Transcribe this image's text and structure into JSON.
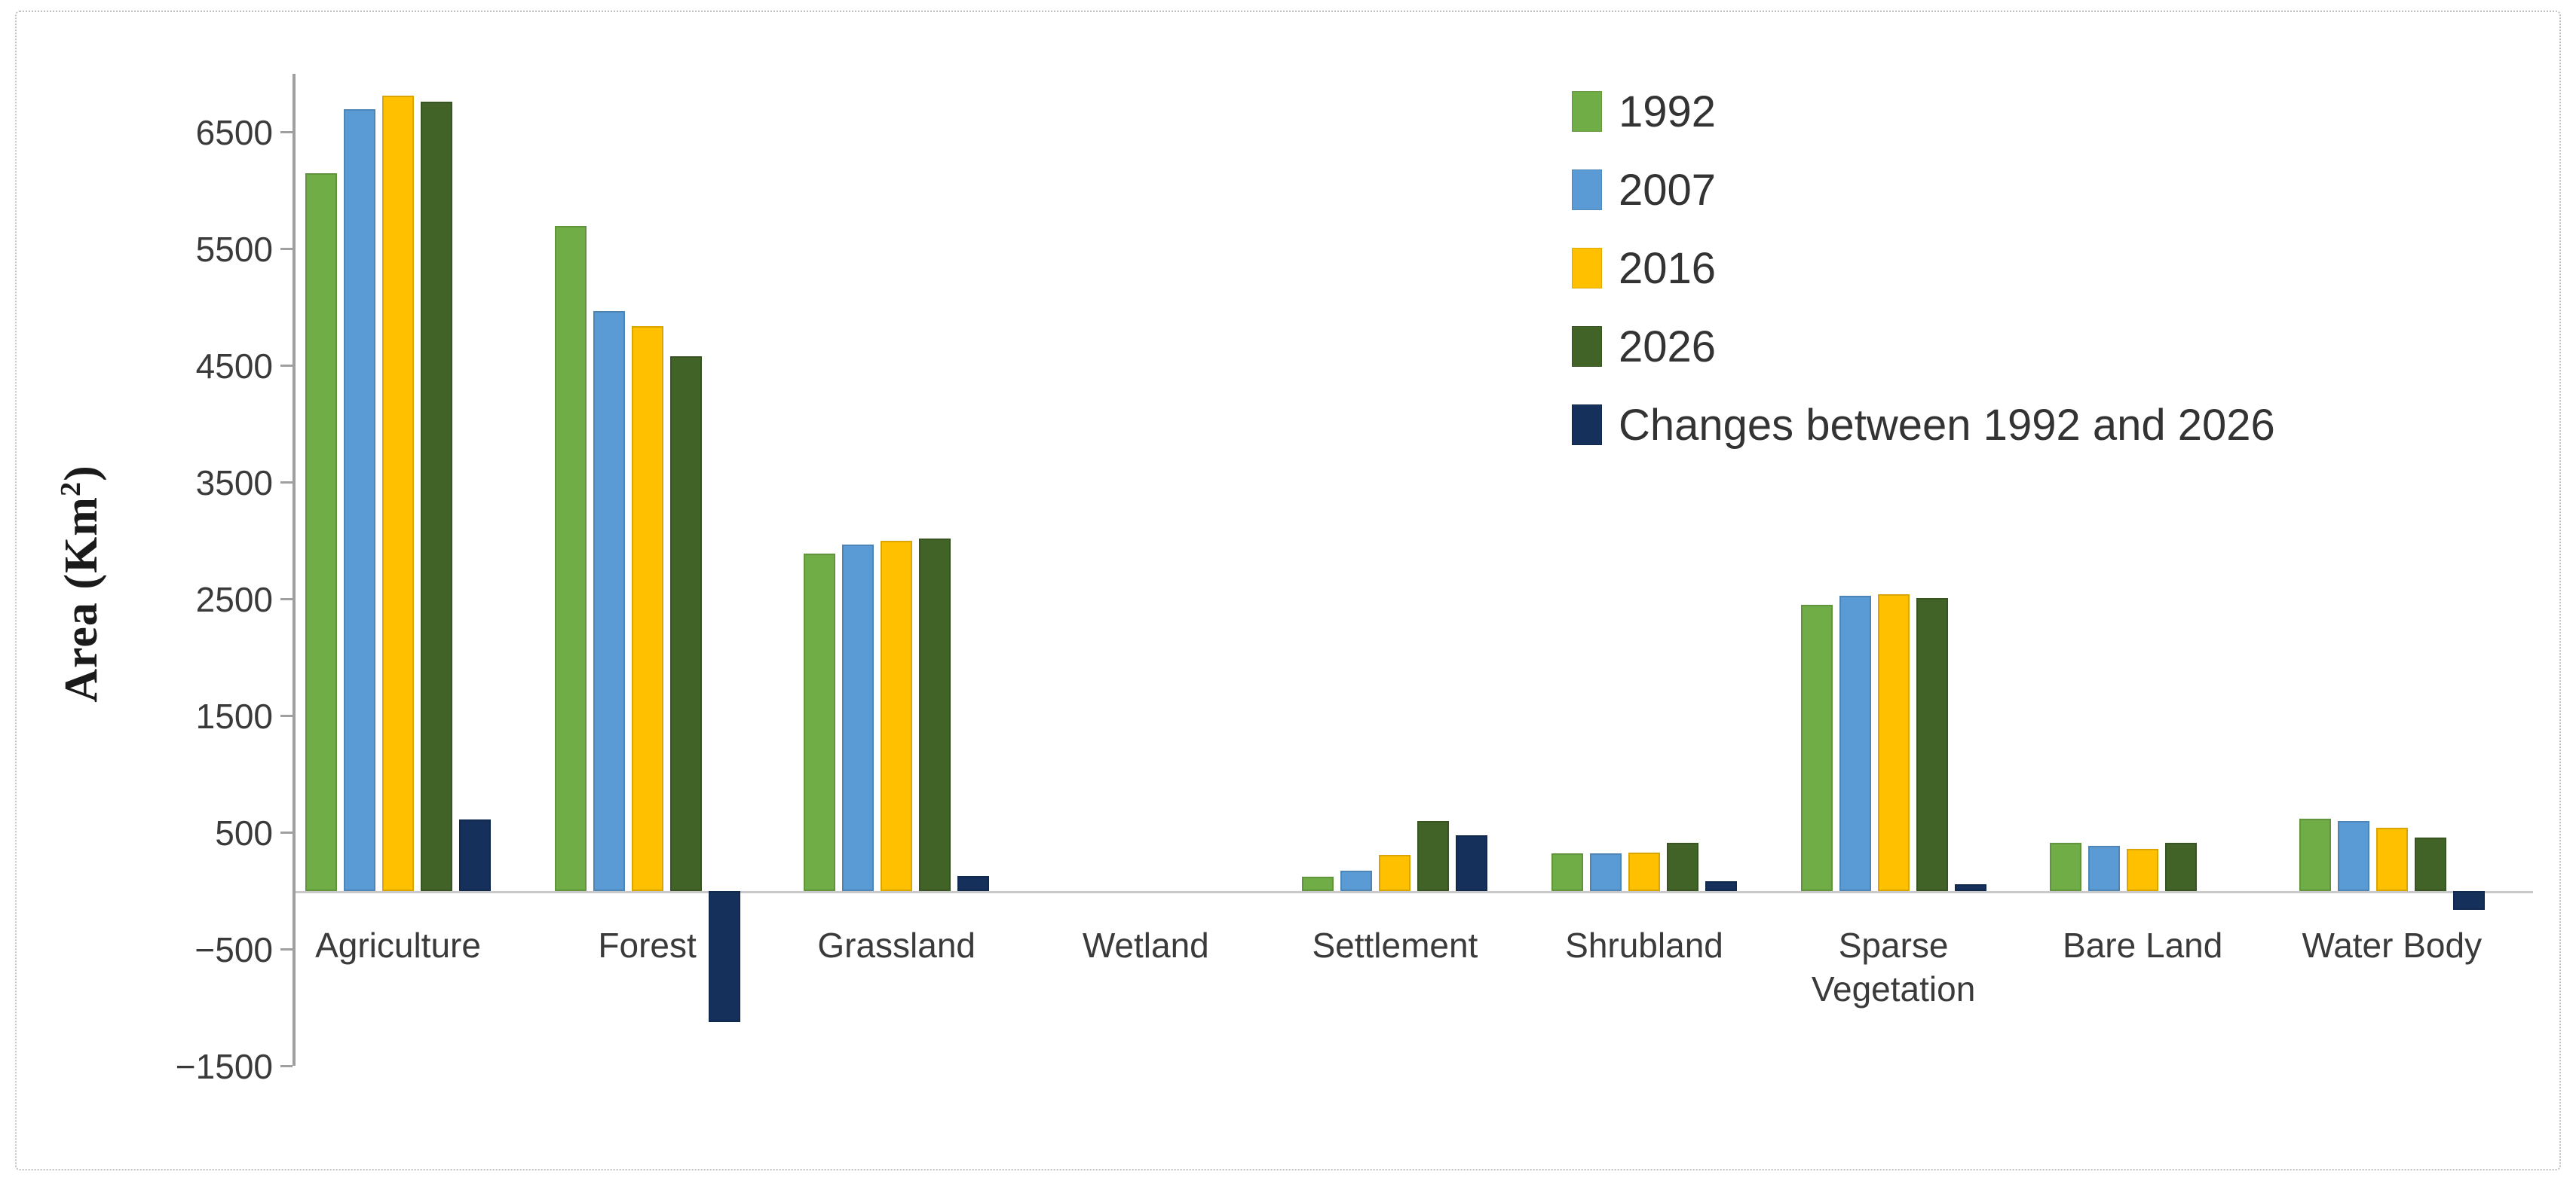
{
  "figure": {
    "ylabel_parts": {
      "prefix": "Area (Km",
      "sup": "2",
      "suffix": ")"
    }
  },
  "chart_data": {
    "type": "bar",
    "title": "",
    "xlabel": "",
    "ylabel": "Area (Km2)",
    "categories": [
      "Agriculture",
      "Forest",
      "Grassland",
      "Wetland",
      "Settlement",
      "Shrubland",
      "Sparse Vegetation",
      "Bare Land",
      "Water Body"
    ],
    "series": [
      {
        "name": "1992",
        "color": "#70AD47",
        "values": [
          6150,
          5700,
          2890,
          0,
          120,
          325,
          2450,
          410,
          620
        ]
      },
      {
        "name": "2007",
        "color": "#5B9BD5",
        "values": [
          6700,
          4970,
          2970,
          0,
          175,
          325,
          2530,
          385,
          600
        ]
      },
      {
        "name": "2016",
        "color": "#FFC000",
        "values": [
          6810,
          4840,
          3000,
          0,
          310,
          330,
          2540,
          360,
          540
        ]
      },
      {
        "name": "2026",
        "color": "#426327",
        "values": [
          6760,
          4580,
          3020,
          0,
          600,
          410,
          2510,
          415,
          460
        ]
      },
      {
        "name": "Changes between 1992 and 2026",
        "color": "#16305C",
        "values": [
          610,
          -1120,
          130,
          0,
          480,
          85,
          60,
          5,
          -160
        ]
      }
    ],
    "yticks": [
      -1500,
      -500,
      500,
      1500,
      2500,
      3500,
      4500,
      5500,
      6500
    ],
    "ylim": [
      -1500,
      7000
    ],
    "grid": false,
    "legend_position": "top-right"
  }
}
